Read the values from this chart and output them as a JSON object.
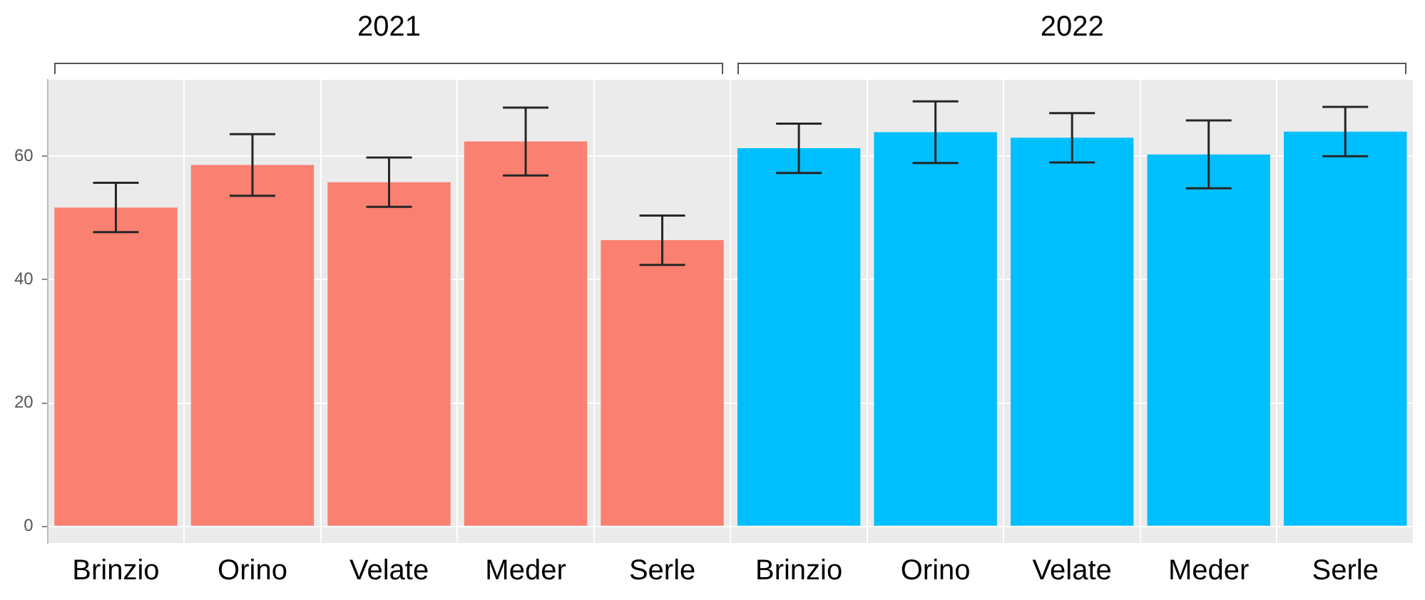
{
  "chart_data": {
    "type": "bar",
    "categories": [
      "Brinzio",
      "Orino",
      "Velate",
      "Meder",
      "Serle",
      "Brinzio",
      "Orino",
      "Velate",
      "Meder",
      "Serle"
    ],
    "values": [
      51.7,
      58.6,
      55.8,
      62.4,
      46.4,
      61.3,
      63.9,
      63.0,
      60.3,
      64.0
    ],
    "colors": [
      "#fa8072",
      "#fa8072",
      "#fa8072",
      "#fa8072",
      "#fa8072",
      "#00bfff",
      "#00bfff",
      "#00bfff",
      "#00bfff",
      "#00bfff"
    ],
    "errors": [
      4,
      5,
      4,
      5.5,
      4,
      4,
      5,
      4,
      5.5,
      4
    ],
    "annotations": [
      "2021",
      "2022"
    ],
    "ylim": [
      -2.7,
      72.4
    ],
    "yticks": [
      0,
      20,
      40,
      60
    ],
    "grid": true,
    "legend": false
  }
}
